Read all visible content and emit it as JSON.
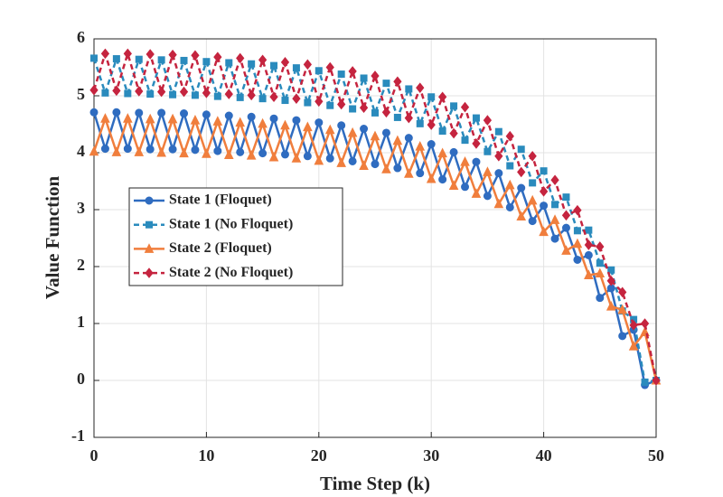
{
  "chart_data": {
    "type": "line",
    "xlabel": "Time Step (k)",
    "ylabel": "Value Function",
    "x": [
      0,
      1,
      2,
      3,
      4,
      5,
      6,
      7,
      8,
      9,
      10,
      11,
      12,
      13,
      14,
      15,
      16,
      17,
      18,
      19,
      20,
      21,
      22,
      23,
      24,
      25,
      26,
      27,
      28,
      29,
      30,
      31,
      32,
      33,
      34,
      35,
      36,
      37,
      38,
      39,
      40,
      41,
      42,
      43,
      44,
      45,
      46,
      47,
      48,
      49,
      50
    ],
    "xlim": [
      0,
      50
    ],
    "xticks": [
      0,
      10,
      20,
      30,
      40,
      50
    ],
    "ylim": [
      -1,
      6
    ],
    "yticks": [
      -1,
      0,
      1,
      2,
      3,
      4,
      5,
      6
    ],
    "grid": true,
    "legend": "center left",
    "series": [
      {
        "name": "State 1 (Floquet)",
        "color": "#2f6cc0",
        "dash": "solid",
        "marker": "circle",
        "values": [
          4.71,
          4.07,
          4.71,
          4.07,
          4.7,
          4.06,
          4.7,
          4.06,
          4.69,
          4.05,
          4.67,
          4.03,
          4.65,
          4.01,
          4.63,
          3.99,
          4.6,
          3.97,
          4.57,
          3.94,
          4.53,
          3.9,
          4.48,
          3.85,
          4.42,
          3.8,
          4.35,
          3.73,
          4.26,
          3.64,
          4.15,
          3.53,
          4.01,
          3.4,
          3.84,
          3.24,
          3.64,
          3.04,
          3.38,
          2.8,
          3.07,
          2.49,
          2.68,
          2.12,
          2.2,
          1.45,
          1.62,
          0.78,
          0.89,
          -0.08,
          0
        ]
      },
      {
        "name": "State 1 (No Floquet)",
        "color": "#2a8bbd",
        "dash": "dashed",
        "marker": "square",
        "values": [
          5.66,
          5.05,
          5.65,
          5.04,
          5.64,
          5.03,
          5.63,
          5.02,
          5.62,
          5.01,
          5.6,
          4.99,
          5.58,
          4.97,
          5.56,
          4.95,
          5.53,
          4.92,
          5.49,
          4.88,
          5.44,
          4.83,
          5.38,
          4.77,
          5.31,
          4.7,
          5.22,
          4.62,
          5.12,
          4.51,
          4.98,
          4.38,
          4.82,
          4.22,
          4.61,
          4.02,
          4.37,
          3.77,
          4.06,
          3.47,
          3.68,
          3.09,
          3.22,
          2.63,
          2.64,
          2.06,
          1.94,
          1.22,
          1.07,
          -0.03,
          0
        ]
      },
      {
        "name": "State 2 (Floquet)",
        "color": "#f07e3d",
        "dash": "solid",
        "marker": "triangle",
        "values": [
          4.02,
          4.6,
          4.01,
          4.6,
          4.01,
          4.59,
          4.0,
          4.59,
          3.99,
          4.57,
          3.98,
          4.55,
          3.96,
          4.53,
          3.95,
          4.51,
          3.92,
          4.48,
          3.9,
          4.45,
          3.86,
          4.4,
          3.82,
          4.35,
          3.77,
          4.29,
          3.71,
          4.21,
          3.63,
          4.11,
          3.54,
          3.99,
          3.42,
          3.84,
          3.28,
          3.66,
          3.1,
          3.43,
          2.88,
          3.16,
          2.61,
          2.82,
          2.28,
          2.4,
          1.85,
          1.88,
          1.3,
          1.24,
          0.6,
          0.85,
          0
        ]
      },
      {
        "name": "State 2 (No Floquet)",
        "color": "#c5243f",
        "dash": "dashed",
        "marker": "diamond",
        "values": [
          5.1,
          5.74,
          5.09,
          5.74,
          5.08,
          5.73,
          5.07,
          5.72,
          5.07,
          5.71,
          5.05,
          5.68,
          5.03,
          5.66,
          5.01,
          5.63,
          4.98,
          5.59,
          4.95,
          5.55,
          4.9,
          5.5,
          4.85,
          5.43,
          4.79,
          5.35,
          4.71,
          5.25,
          4.61,
          5.14,
          4.49,
          4.98,
          4.34,
          4.8,
          4.16,
          4.57,
          3.94,
          4.29,
          3.66,
          3.94,
          3.32,
          3.52,
          2.9,
          2.99,
          2.38,
          2.35,
          1.75,
          1.55,
          0.97,
          1.0,
          0
        ]
      }
    ]
  }
}
